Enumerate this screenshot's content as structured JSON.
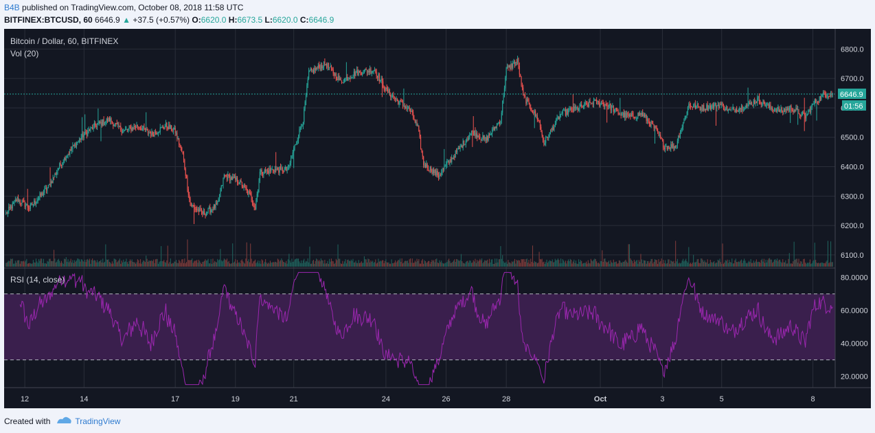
{
  "header": {
    "author": "B4B",
    "published": "published on TradingView.com, October 08, 2018 11:58 UTC",
    "symbol": "BITFINEX:BTCUSD, 60",
    "last": "6646.9",
    "change": "+37.5 (+0.57%)",
    "o_label": "O:",
    "o_value": "6620.0",
    "h_label": "H:",
    "h_value": "6673.5",
    "l_label": "L:",
    "l_value": "6620.0",
    "c_label": "C:",
    "c_value": "6646.9"
  },
  "pane": {
    "title": "Bitcoin / Dollar, 60, BITFINEX",
    "vol_label": "Vol (20)",
    "rsi_label": "RSI (14, close)",
    "last_price_tag": "6646.9",
    "countdown_tag": "01:56"
  },
  "footer": {
    "created_with": "Created with",
    "brand": "TradingView"
  },
  "colors": {
    "up": "#26a69a",
    "down": "#ef5350",
    "background": "#131722",
    "rsi_line": "#9c27b0",
    "rsi_band": "#3a1f4d"
  },
  "chart_data": [
    {
      "type": "candlestick",
      "title": "Bitcoin / Dollar, 60, BITFINEX",
      "ylim": [
        6060,
        6850
      ],
      "y_ticks": [
        "6100.0",
        "6200.0",
        "6300.0",
        "6400.0",
        "6500.0",
        "6600.0",
        "6700.0",
        "6800.0"
      ],
      "x_ticks": [
        "12",
        "14",
        "17",
        "19",
        "21",
        "24",
        "26",
        "28",
        "Oct",
        "3",
        "5",
        "8"
      ],
      "x_tick_bar_index": [
        20,
        83,
        180,
        244,
        306,
        404,
        468,
        532,
        632,
        698,
        761,
        858
      ],
      "total_bars": 880,
      "last_price": 6646.9,
      "grid": true,
      "anchors": [
        [
          0,
          6240
        ],
        [
          12,
          6290
        ],
        [
          25,
          6260
        ],
        [
          45,
          6330
        ],
        [
          60,
          6420
        ],
        [
          80,
          6500
        ],
        [
          95,
          6540
        ],
        [
          110,
          6560
        ],
        [
          125,
          6520
        ],
        [
          140,
          6540
        ],
        [
          155,
          6510
        ],
        [
          170,
          6540
        ],
        [
          180,
          6520
        ],
        [
          188,
          6440
        ],
        [
          196,
          6270
        ],
        [
          210,
          6240
        ],
        [
          225,
          6270
        ],
        [
          232,
          6370
        ],
        [
          248,
          6350
        ],
        [
          260,
          6300
        ],
        [
          265,
          6260
        ],
        [
          270,
          6380
        ],
        [
          285,
          6390
        ],
        [
          300,
          6390
        ],
        [
          306,
          6460
        ],
        [
          316,
          6560
        ],
        [
          322,
          6720
        ],
        [
          340,
          6750
        ],
        [
          356,
          6690
        ],
        [
          372,
          6720
        ],
        [
          392,
          6730
        ],
        [
          404,
          6660
        ],
        [
          418,
          6620
        ],
        [
          430,
          6590
        ],
        [
          438,
          6530
        ],
        [
          444,
          6410
        ],
        [
          460,
          6370
        ],
        [
          472,
          6420
        ],
        [
          484,
          6470
        ],
        [
          496,
          6520
        ],
        [
          510,
          6490
        ],
        [
          526,
          6560
        ],
        [
          532,
          6730
        ],
        [
          544,
          6760
        ],
        [
          550,
          6640
        ],
        [
          566,
          6560
        ],
        [
          572,
          6480
        ],
        [
          590,
          6580
        ],
        [
          610,
          6600
        ],
        [
          625,
          6620
        ],
        [
          640,
          6610
        ],
        [
          652,
          6580
        ],
        [
          664,
          6570
        ],
        [
          676,
          6580
        ],
        [
          690,
          6530
        ],
        [
          700,
          6470
        ],
        [
          712,
          6470
        ],
        [
          726,
          6610
        ],
        [
          740,
          6600
        ],
        [
          760,
          6610
        ],
        [
          770,
          6590
        ],
        [
          790,
          6610
        ],
        [
          800,
          6630
        ],
        [
          812,
          6600
        ],
        [
          825,
          6590
        ],
        [
          835,
          6600
        ],
        [
          850,
          6570
        ],
        [
          860,
          6620
        ],
        [
          870,
          6646.9
        ]
      ]
    },
    {
      "type": "bar",
      "title": "Vol (20)"
    },
    {
      "type": "line",
      "title": "RSI (14, close)",
      "ylim": [
        14,
        84
      ],
      "y_ticks": [
        "20.0000",
        "40.0000",
        "60.0000",
        "80.0000"
      ],
      "bands": [
        30,
        70
      ]
    }
  ]
}
